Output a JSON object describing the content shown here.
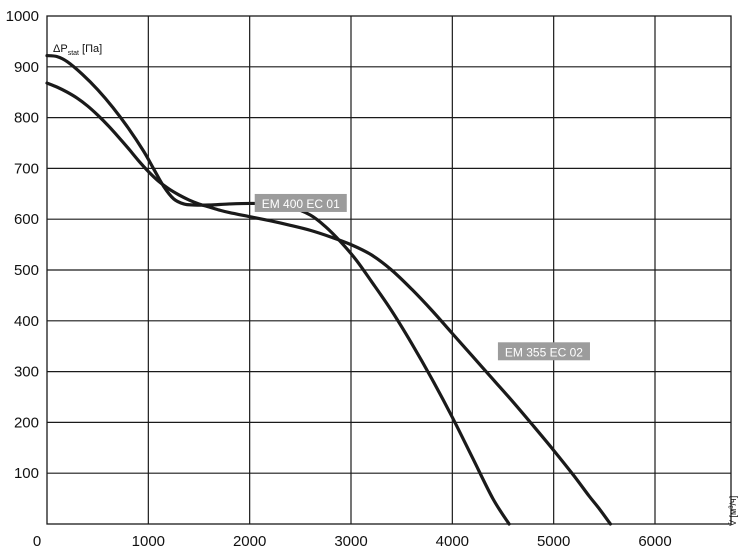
{
  "chart_data": {
    "type": "line",
    "title": "",
    "xlabel": "V̇ [м³/ч]",
    "ylabel": "ΔPstat [Па]",
    "ylabel_parts": {
      "main": "ΔP",
      "sub": "stat",
      "unit": " [Па]"
    },
    "xlabel_parts": {
      "main": "V̇ [м",
      "sup": "3",
      "unit": "/ч]"
    },
    "xlim": [
      0,
      6750
    ],
    "ylim": [
      0,
      1000
    ],
    "x_ticks": [
      1000,
      2000,
      3000,
      4000,
      5000,
      6000
    ],
    "x_tick_labels": [
      "1000",
      "2000",
      "3000",
      "4000",
      "5000",
      "6000"
    ],
    "y_ticks": [
      100,
      200,
      300,
      400,
      500,
      600,
      700,
      800,
      900,
      1000
    ],
    "y_tick_labels": [
      "100",
      "200",
      "300",
      "400",
      "500",
      "600",
      "700",
      "800",
      "900",
      "1000"
    ],
    "origin_label": "0",
    "grid": true,
    "colors": {
      "grid": "#1a1a1a",
      "curve": "#1a1a1a",
      "label_bg": "#9c9c9c",
      "label_text": "#ffffff"
    },
    "series": [
      {
        "name": "EM 400 EC 01",
        "label_anchor": {
          "x": 2050,
          "y": 630
        },
        "points": [
          {
            "x": 0,
            "y": 922
          },
          {
            "x": 100,
            "y": 920
          },
          {
            "x": 200,
            "y": 910
          },
          {
            "x": 350,
            "y": 885
          },
          {
            "x": 500,
            "y": 855
          },
          {
            "x": 650,
            "y": 820
          },
          {
            "x": 800,
            "y": 780
          },
          {
            "x": 950,
            "y": 735
          },
          {
            "x": 1050,
            "y": 700
          },
          {
            "x": 1150,
            "y": 665
          },
          {
            "x": 1250,
            "y": 640
          },
          {
            "x": 1350,
            "y": 630
          },
          {
            "x": 1450,
            "y": 628
          },
          {
            "x": 1600,
            "y": 628
          },
          {
            "x": 1800,
            "y": 630
          },
          {
            "x": 2000,
            "y": 631
          },
          {
            "x": 2200,
            "y": 630
          },
          {
            "x": 2400,
            "y": 624
          },
          {
            "x": 2600,
            "y": 608
          },
          {
            "x": 2750,
            "y": 585
          },
          {
            "x": 2900,
            "y": 555
          },
          {
            "x": 3050,
            "y": 520
          },
          {
            "x": 3200,
            "y": 478
          },
          {
            "x": 3400,
            "y": 420
          },
          {
            "x": 3600,
            "y": 355
          },
          {
            "x": 3800,
            "y": 285
          },
          {
            "x": 4000,
            "y": 210
          },
          {
            "x": 4200,
            "y": 130
          },
          {
            "x": 4400,
            "y": 50
          },
          {
            "x": 4560,
            "y": 0
          }
        ]
      },
      {
        "name": "EM 355 EC 02",
        "label_anchor": {
          "x": 4450,
          "y": 338
        },
        "points": [
          {
            "x": 0,
            "y": 868
          },
          {
            "x": 100,
            "y": 860
          },
          {
            "x": 200,
            "y": 850
          },
          {
            "x": 300,
            "y": 838
          },
          {
            "x": 400,
            "y": 823
          },
          {
            "x": 500,
            "y": 805
          },
          {
            "x": 600,
            "y": 785
          },
          {
            "x": 700,
            "y": 763
          },
          {
            "x": 800,
            "y": 740
          },
          {
            "x": 900,
            "y": 716
          },
          {
            "x": 1000,
            "y": 694
          },
          {
            "x": 1100,
            "y": 675
          },
          {
            "x": 1200,
            "y": 660
          },
          {
            "x": 1300,
            "y": 648
          },
          {
            "x": 1400,
            "y": 638
          },
          {
            "x": 1500,
            "y": 630
          },
          {
            "x": 1600,
            "y": 624
          },
          {
            "x": 1700,
            "y": 618
          },
          {
            "x": 1800,
            "y": 613
          },
          {
            "x": 2000,
            "y": 605
          },
          {
            "x": 2200,
            "y": 597
          },
          {
            "x": 2400,
            "y": 588
          },
          {
            "x": 2600,
            "y": 578
          },
          {
            "x": 2800,
            "y": 565
          },
          {
            "x": 3000,
            "y": 550
          },
          {
            "x": 3200,
            "y": 530
          },
          {
            "x": 3400,
            "y": 500
          },
          {
            "x": 3600,
            "y": 462
          },
          {
            "x": 3800,
            "y": 420
          },
          {
            "x": 4000,
            "y": 375
          },
          {
            "x": 4200,
            "y": 330
          },
          {
            "x": 4400,
            "y": 285
          },
          {
            "x": 4600,
            "y": 240
          },
          {
            "x": 4800,
            "y": 193
          },
          {
            "x": 5000,
            "y": 145
          },
          {
            "x": 5200,
            "y": 95
          },
          {
            "x": 5350,
            "y": 55
          },
          {
            "x": 5450,
            "y": 30
          },
          {
            "x": 5560,
            "y": 0
          }
        ]
      }
    ]
  }
}
